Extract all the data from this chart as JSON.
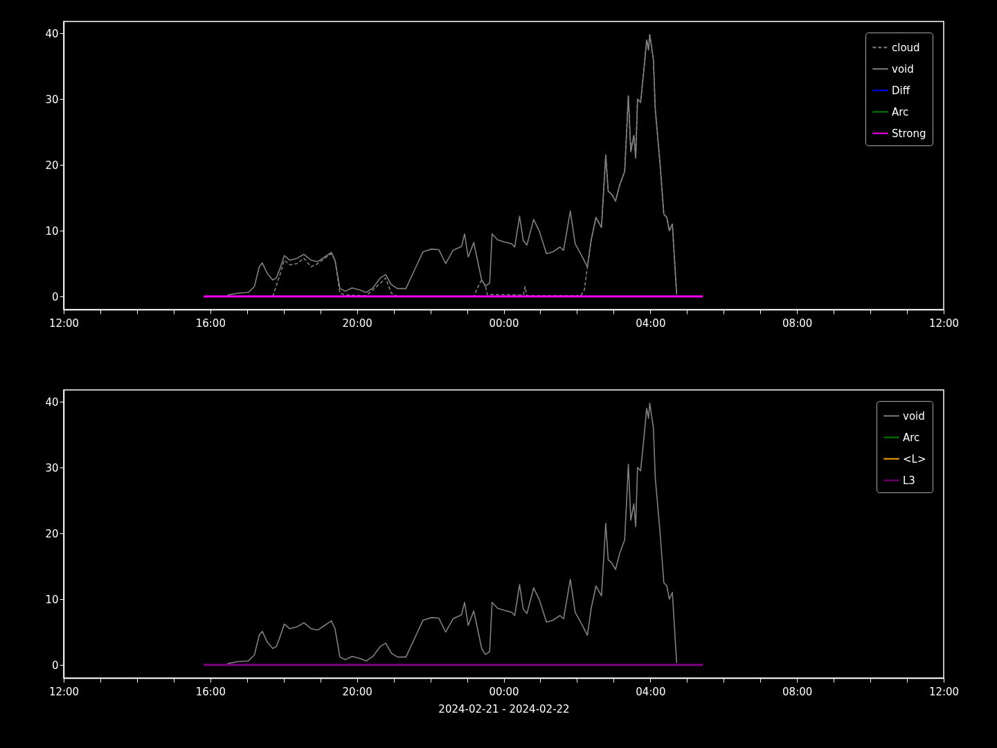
{
  "chart_data": [
    {
      "type": "line",
      "xlim": [
        "2024-02-21T12:00",
        "2024-02-22T12:00"
      ],
      "ylim": [
        -2,
        41.8
      ],
      "xticks": [
        {
          "value": "2024-02-21T12:00",
          "label": "12:00"
        },
        {
          "value": "2024-02-21T13:00",
          "label": null
        },
        {
          "value": "2024-02-21T14:00",
          "label": null
        },
        {
          "value": "2024-02-21T15:00",
          "label": null
        },
        {
          "value": "2024-02-21T16:00",
          "label": "16:00"
        },
        {
          "value": "2024-02-21T17:00",
          "label": null
        },
        {
          "value": "2024-02-21T18:00",
          "label": null
        },
        {
          "value": "2024-02-21T19:00",
          "label": null
        },
        {
          "value": "2024-02-21T20:00",
          "label": "20:00"
        },
        {
          "value": "2024-02-21T21:00",
          "label": null
        },
        {
          "value": "2024-02-21T22:00",
          "label": null
        },
        {
          "value": "2024-02-21T23:00",
          "label": null
        },
        {
          "value": "2024-02-22T00:00",
          "label": "00:00"
        },
        {
          "value": "2024-02-22T01:00",
          "label": null
        },
        {
          "value": "2024-02-22T02:00",
          "label": null
        },
        {
          "value": "2024-02-22T03:00",
          "label": null
        },
        {
          "value": "2024-02-22T04:00",
          "label": "04:00"
        },
        {
          "value": "2024-02-22T05:00",
          "label": null
        },
        {
          "value": "2024-02-22T06:00",
          "label": null
        },
        {
          "value": "2024-02-22T07:00",
          "label": null
        },
        {
          "value": "2024-02-22T08:00",
          "label": "08:00"
        },
        {
          "value": "2024-02-22T09:00",
          "label": null
        },
        {
          "value": "2024-02-22T10:00",
          "label": null
        },
        {
          "value": "2024-02-22T11:00",
          "label": null
        },
        {
          "value": "2024-02-22T12:00",
          "label": "12:00"
        }
      ],
      "yticks": [
        0,
        10,
        20,
        30,
        40
      ],
      "legend": "top right",
      "grid": false,
      "marker": "none",
      "series": [
        {
          "name": "cloud",
          "color": "#808080",
          "line_style": "dashed",
          "x": [
            "2024-02-21T17:42",
            "2024-02-21T17:53",
            "2024-02-21T18:01",
            "2024-02-21T18:10",
            "2024-02-21T18:22",
            "2024-02-21T18:33",
            "2024-02-21T18:45",
            "2024-02-21T18:56",
            "2024-02-21T19:07",
            "2024-02-21T19:18",
            "2024-02-21T19:24",
            "2024-02-21T19:32",
            "2024-02-21T19:41",
            "2024-02-21T20:15",
            "2024-02-21T20:38",
            "2024-02-21T20:47",
            "2024-02-21T20:56",
            "2024-02-21T21:06",
            "2024-02-21T23:11",
            "2024-02-21T23:18",
            "2024-02-21T23:24",
            "2024-02-21T23:30",
            "2024-02-21T23:33",
            "2024-02-22T00:32",
            "2024-02-22T00:35",
            "2024-02-22T00:38",
            "2024-02-22T02:06",
            "2024-02-22T02:12",
            "2024-02-22T02:17",
            "2024-02-22T02:23",
            "2024-02-22T02:31",
            "2024-02-22T02:40",
            "2024-02-22T02:47",
            "2024-02-22T02:51",
            "2024-02-22T02:57",
            "2024-02-22T03:03",
            "2024-02-22T03:10",
            "2024-02-22T03:18",
            "2024-02-22T03:24",
            "2024-02-22T03:28",
            "2024-02-22T03:33",
            "2024-02-22T03:36",
            "2024-02-22T03:39",
            "2024-02-22T03:44",
            "2024-02-22T03:50",
            "2024-02-22T03:54",
            "2024-02-22T03:57",
            "2024-02-22T03:59",
            "2024-02-22T04:05",
            "2024-02-22T04:08",
            "2024-02-22T04:16",
            "2024-02-22T04:22",
            "2024-02-22T04:27",
            "2024-02-22T04:31",
            "2024-02-22T04:36",
            "2024-02-22T04:43"
          ],
          "values": [
            0,
            3,
            5.5,
            4.8,
            5,
            5.8,
            4.5,
            5,
            5.8,
            6.5,
            5.5,
            0.5,
            0.2,
            0.1,
            2,
            2.8,
            0.5,
            0,
            0,
            1.5,
            2.5,
            1.6,
            0.3,
            0.2,
            1.5,
            0.1,
            0.1,
            1,
            4.5,
            8.5,
            12,
            10.5,
            21.5,
            16,
            15.5,
            14.5,
            17,
            19,
            30.5,
            22,
            24.5,
            21,
            30,
            29.5,
            35,
            39,
            37.5,
            39.8,
            36,
            28.5,
            20,
            12.5,
            12,
            10,
            11,
            0.3
          ]
        },
        {
          "name": "void",
          "color": "#808080",
          "line_style": "solid",
          "x": [
            "2024-02-21T16:28",
            "2024-02-21T16:45",
            "2024-02-21T17:02",
            "2024-02-21T17:12",
            "2024-02-21T17:20",
            "2024-02-21T17:25",
            "2024-02-21T17:33",
            "2024-02-21T17:42",
            "2024-02-21T17:48",
            "2024-02-21T17:53",
            "2024-02-21T18:01",
            "2024-02-21T18:10",
            "2024-02-21T18:22",
            "2024-02-21T18:33",
            "2024-02-21T18:45",
            "2024-02-21T18:56",
            "2024-02-21T19:07",
            "2024-02-21T19:18",
            "2024-02-21T19:24",
            "2024-02-21T19:32",
            "2024-02-21T19:41",
            "2024-02-21T19:52",
            "2024-02-21T20:04",
            "2024-02-21T20:15",
            "2024-02-21T20:26",
            "2024-02-21T20:38",
            "2024-02-21T20:47",
            "2024-02-21T20:56",
            "2024-02-21T21:06",
            "2024-02-21T21:20",
            "2024-02-21T21:34",
            "2024-02-21T21:48",
            "2024-02-21T22:02",
            "2024-02-21T22:14",
            "2024-02-21T22:25",
            "2024-02-21T22:37",
            "2024-02-21T22:51",
            "2024-02-21T22:56",
            "2024-02-21T23:02",
            "2024-02-21T23:11",
            "2024-02-21T23:16",
            "2024-02-21T23:24",
            "2024-02-21T23:30",
            "2024-02-21T23:37",
            "2024-02-21T23:41",
            "2024-02-21T23:50",
            "2024-02-22T00:01",
            "2024-02-22T00:13",
            "2024-02-22T00:18",
            "2024-02-22T00:26",
            "2024-02-22T00:32",
            "2024-02-22T00:38",
            "2024-02-22T00:49",
            "2024-02-22T00:58",
            "2024-02-22T01:10",
            "2024-02-22T01:21",
            "2024-02-22T01:32",
            "2024-02-22T01:38",
            "2024-02-22T01:49",
            "2024-02-22T01:57",
            "2024-02-22T02:06",
            "2024-02-22T02:17",
            "2024-02-22T02:23",
            "2024-02-22T02:31",
            "2024-02-22T02:40",
            "2024-02-22T02:47",
            "2024-02-22T02:51",
            "2024-02-22T02:57",
            "2024-02-22T03:03",
            "2024-02-22T03:10",
            "2024-02-22T03:18",
            "2024-02-22T03:24",
            "2024-02-22T03:28",
            "2024-02-22T03:33",
            "2024-02-22T03:36",
            "2024-02-22T03:39",
            "2024-02-22T03:44",
            "2024-02-22T03:50",
            "2024-02-22T03:54",
            "2024-02-22T03:57",
            "2024-02-22T03:59",
            "2024-02-22T04:05",
            "2024-02-22T04:08",
            "2024-02-22T04:16",
            "2024-02-22T04:22",
            "2024-02-22T04:27",
            "2024-02-22T04:31",
            "2024-02-22T04:36",
            "2024-02-22T04:43"
          ],
          "values": [
            0.2,
            0.5,
            0.6,
            1.5,
            4.5,
            5.1,
            3.5,
            2.5,
            2.8,
            4,
            6.2,
            5.5,
            5.8,
            6.4,
            5.5,
            5.3,
            6,
            6.7,
            5.5,
            1.2,
            0.8,
            1.3,
            1,
            0.6,
            1.3,
            2.8,
            3.3,
            1.8,
            1.2,
            1.2,
            4,
            6.8,
            7.2,
            7.1,
            5,
            7,
            7.6,
            9.5,
            6,
            8.2,
            6,
            2.5,
            1.6,
            2,
            9.5,
            8.6,
            8.3,
            8,
            7.5,
            12.2,
            8.5,
            7.8,
            11.7,
            10,
            6.5,
            6.8,
            7.5,
            7,
            13,
            8,
            6.5,
            4.5,
            8.5,
            12,
            10.5,
            21.5,
            16,
            15.5,
            14.5,
            17,
            19,
            30.5,
            22,
            24.5,
            21,
            30,
            29.5,
            35,
            39,
            37.5,
            39.8,
            36,
            28.5,
            20,
            12.5,
            12,
            10,
            11,
            0.3
          ]
        },
        {
          "name": "Diff",
          "color": "#0000ff",
          "line_style": "solid"
        },
        {
          "name": "Arc",
          "color": "#008000",
          "line_style": "solid"
        },
        {
          "name": "Strong",
          "color": "#ff00ff",
          "line_style": "solid",
          "x": [
            "2024-02-21T15:49",
            "2024-02-22T05:26"
          ],
          "values": [
            0,
            0
          ]
        }
      ]
    },
    {
      "type": "line",
      "xlabel": "2024-02-21 - 2024-02-22",
      "xlim": [
        "2024-02-21T12:00",
        "2024-02-22T12:00"
      ],
      "ylim": [
        -2,
        41.8
      ],
      "xticks": [
        {
          "value": "2024-02-21T12:00",
          "label": "12:00"
        },
        {
          "value": "2024-02-21T13:00",
          "label": null
        },
        {
          "value": "2024-02-21T14:00",
          "label": null
        },
        {
          "value": "2024-02-21T15:00",
          "label": null
        },
        {
          "value": "2024-02-21T16:00",
          "label": "16:00"
        },
        {
          "value": "2024-02-21T17:00",
          "label": null
        },
        {
          "value": "2024-02-21T18:00",
          "label": null
        },
        {
          "value": "2024-02-21T19:00",
          "label": null
        },
        {
          "value": "2024-02-21T20:00",
          "label": "20:00"
        },
        {
          "value": "2024-02-21T21:00",
          "label": null
        },
        {
          "value": "2024-02-21T22:00",
          "label": null
        },
        {
          "value": "2024-02-21T23:00",
          "label": null
        },
        {
          "value": "2024-02-22T00:00",
          "label": "00:00"
        },
        {
          "value": "2024-02-22T01:00",
          "label": null
        },
        {
          "value": "2024-02-22T02:00",
          "label": null
        },
        {
          "value": "2024-02-22T03:00",
          "label": null
        },
        {
          "value": "2024-02-22T04:00",
          "label": "04:00"
        },
        {
          "value": "2024-02-22T05:00",
          "label": null
        },
        {
          "value": "2024-02-22T06:00",
          "label": null
        },
        {
          "value": "2024-02-22T07:00",
          "label": null
        },
        {
          "value": "2024-02-22T08:00",
          "label": "08:00"
        },
        {
          "value": "2024-02-22T09:00",
          "label": null
        },
        {
          "value": "2024-02-22T10:00",
          "label": null
        },
        {
          "value": "2024-02-22T11:00",
          "label": null
        },
        {
          "value": "2024-02-22T12:00",
          "label": "12:00"
        }
      ],
      "yticks": [
        0,
        10,
        20,
        30,
        40
      ],
      "legend": "top right",
      "grid": false,
      "marker": "none",
      "series": [
        {
          "name": "void",
          "color": "#808080",
          "line_style": "solid",
          "x": [
            "2024-02-21T16:28",
            "2024-02-21T16:45",
            "2024-02-21T17:02",
            "2024-02-21T17:12",
            "2024-02-21T17:20",
            "2024-02-21T17:25",
            "2024-02-21T17:33",
            "2024-02-21T17:42",
            "2024-02-21T17:48",
            "2024-02-21T17:53",
            "2024-02-21T18:01",
            "2024-02-21T18:10",
            "2024-02-21T18:22",
            "2024-02-21T18:33",
            "2024-02-21T18:45",
            "2024-02-21T18:56",
            "2024-02-21T19:07",
            "2024-02-21T19:18",
            "2024-02-21T19:24",
            "2024-02-21T19:32",
            "2024-02-21T19:41",
            "2024-02-21T19:52",
            "2024-02-21T20:04",
            "2024-02-21T20:15",
            "2024-02-21T20:26",
            "2024-02-21T20:38",
            "2024-02-21T20:47",
            "2024-02-21T20:56",
            "2024-02-21T21:06",
            "2024-02-21T21:20",
            "2024-02-21T21:34",
            "2024-02-21T21:48",
            "2024-02-21T22:02",
            "2024-02-21T22:14",
            "2024-02-21T22:25",
            "2024-02-21T22:37",
            "2024-02-21T22:51",
            "2024-02-21T22:56",
            "2024-02-21T23:02",
            "2024-02-21T23:11",
            "2024-02-21T23:16",
            "2024-02-21T23:24",
            "2024-02-21T23:30",
            "2024-02-21T23:37",
            "2024-02-21T23:41",
            "2024-02-21T23:50",
            "2024-02-22T00:01",
            "2024-02-22T00:13",
            "2024-02-22T00:18",
            "2024-02-22T00:26",
            "2024-02-22T00:32",
            "2024-02-22T00:38",
            "2024-02-22T00:49",
            "2024-02-22T00:58",
            "2024-02-22T01:10",
            "2024-02-22T01:21",
            "2024-02-22T01:32",
            "2024-02-22T01:38",
            "2024-02-22T01:49",
            "2024-02-22T01:57",
            "2024-02-22T02:06",
            "2024-02-22T02:17",
            "2024-02-22T02:23",
            "2024-02-22T02:31",
            "2024-02-22T02:40",
            "2024-02-22T02:47",
            "2024-02-22T02:51",
            "2024-02-22T02:57",
            "2024-02-22T03:03",
            "2024-02-22T03:10",
            "2024-02-22T03:18",
            "2024-02-22T03:24",
            "2024-02-22T03:28",
            "2024-02-22T03:33",
            "2024-02-22T03:36",
            "2024-02-22T03:39",
            "2024-02-22T03:44",
            "2024-02-22T03:50",
            "2024-02-22T03:54",
            "2024-02-22T03:57",
            "2024-02-22T03:59",
            "2024-02-22T04:05",
            "2024-02-22T04:08",
            "2024-02-22T04:16",
            "2024-02-22T04:22",
            "2024-02-22T04:27",
            "2024-02-22T04:31",
            "2024-02-22T04:36",
            "2024-02-22T04:43"
          ],
          "values": [
            0.2,
            0.5,
            0.6,
            1.5,
            4.5,
            5.1,
            3.5,
            2.5,
            2.8,
            4,
            6.2,
            5.5,
            5.8,
            6.4,
            5.5,
            5.3,
            6,
            6.7,
            5.5,
            1.2,
            0.8,
            1.3,
            1,
            0.6,
            1.3,
            2.8,
            3.3,
            1.8,
            1.2,
            1.2,
            4,
            6.8,
            7.2,
            7.1,
            5,
            7,
            7.6,
            9.5,
            6,
            8.2,
            6,
            2.5,
            1.6,
            2,
            9.5,
            8.6,
            8.3,
            8,
            7.5,
            12.2,
            8.5,
            7.8,
            11.7,
            10,
            6.5,
            6.8,
            7.5,
            7,
            13,
            8,
            6.5,
            4.5,
            8.5,
            12,
            10.5,
            21.5,
            16,
            15.5,
            14.5,
            17,
            19,
            30.5,
            22,
            24.5,
            21,
            30,
            29.5,
            35,
            39,
            37.5,
            39.8,
            36,
            28.5,
            20,
            12.5,
            12,
            10,
            11,
            0.3
          ]
        },
        {
          "name": "Arc",
          "color": "#008000",
          "line_style": "solid"
        },
        {
          "name": "<L>",
          "color": "#ffa500",
          "line_style": "solid"
        },
        {
          "name": "L3",
          "color": "#800080",
          "line_style": "solid",
          "x": [
            "2024-02-21T15:49",
            "2024-02-22T05:26"
          ],
          "values": [
            0,
            0
          ]
        }
      ]
    }
  ]
}
